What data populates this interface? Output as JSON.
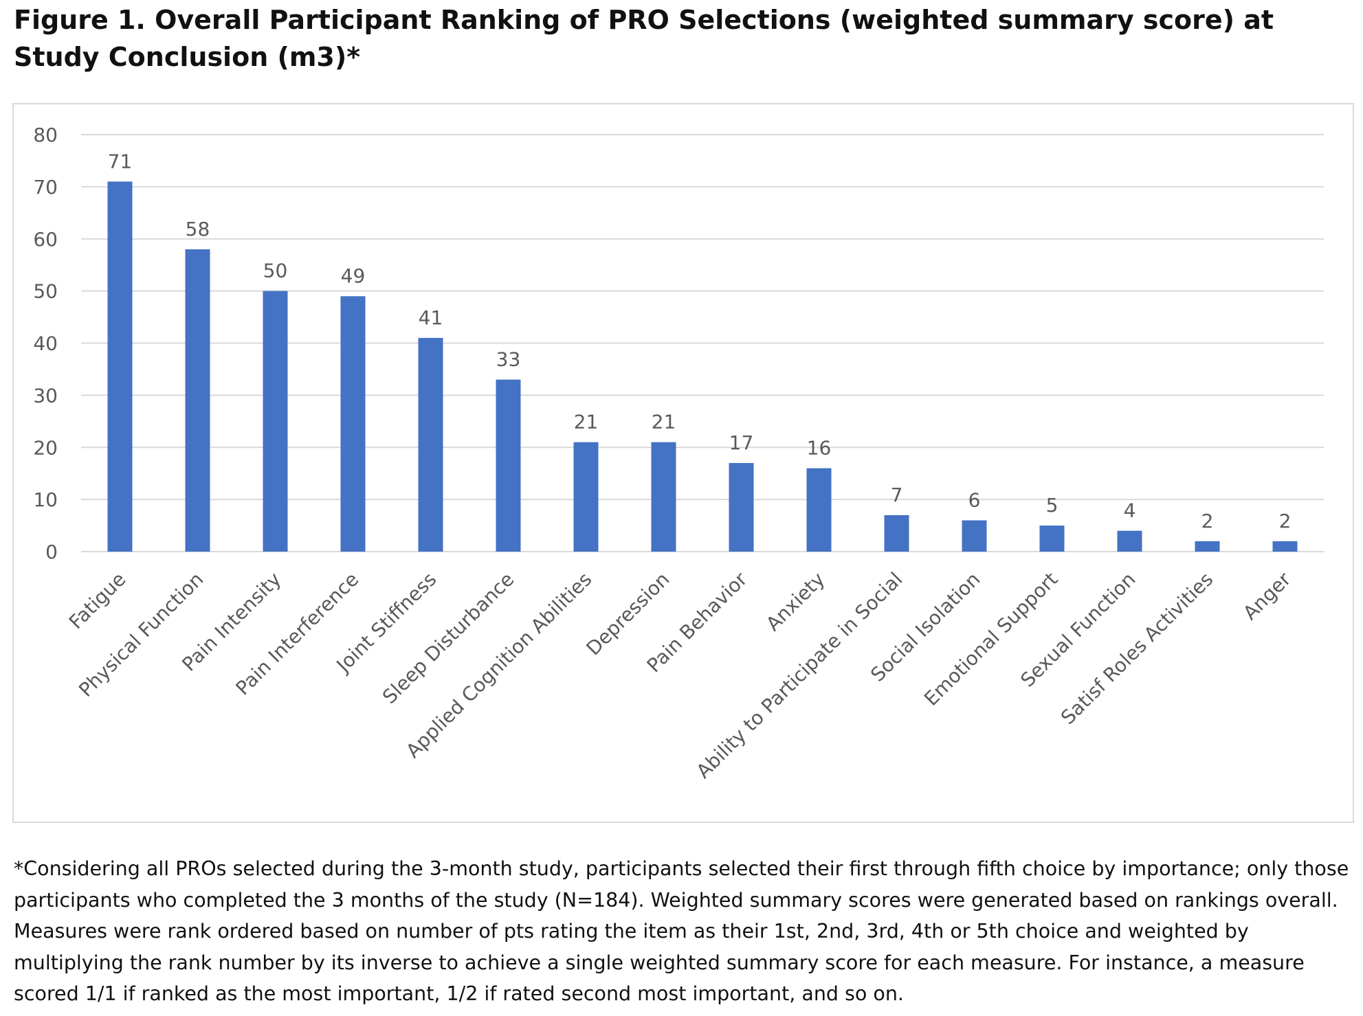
{
  "figure": {
    "title": "Figure 1. Overall Participant Ranking of PRO Selections (weighted summary score) at Study Conclusion (m3)*",
    "footnote": "*Considering all PROs selected during the 3-month study, participants selected their first through fifth choice by importance; only those participants who completed the 3 months of the study (N=184). Weighted summary scores were generated based on rankings overall. Measures were rank ordered based on number of pts rating the item as their 1st, 2nd, 3rd, 4th or 5th choice and weighted by multiplying the rank number by its inverse to achieve a single weighted summary score for each measure. For instance, a measure scored 1/1 if ranked as the most important, 1/2 if rated second most important, and so on."
  },
  "chart_data": {
    "type": "bar",
    "categories": [
      "Fatigue",
      "Physical Function",
      "Pain Intensity",
      "Pain Interference",
      "Joint Stiffness",
      "Sleep Disturbance",
      "Applied Cognition Abilities",
      "Depression",
      "Pain Behavior",
      "Anxiety",
      "Ability to Participate in Social",
      "Social Isolation",
      "Emotional Support",
      "Sexual Function",
      "Satisf Roles Activities",
      "Anger"
    ],
    "values": [
      71,
      58,
      50,
      49,
      41,
      33,
      21,
      21,
      17,
      16,
      7,
      6,
      5,
      4,
      2,
      2
    ],
    "data_labels": true,
    "xlabel": "",
    "ylabel": "",
    "ylim": [
      0,
      80
    ],
    "yticks": [
      0,
      10,
      20,
      30,
      40,
      50,
      60,
      70,
      80
    ],
    "grid": true,
    "legend": false,
    "colors": {
      "bar": "#4472c4",
      "grid": "#d9d9d9",
      "text": "#595959"
    }
  }
}
